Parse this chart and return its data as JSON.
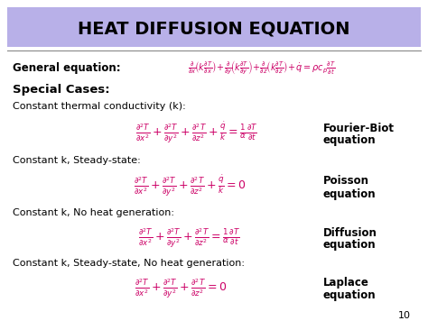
{
  "title": "HEAT DIFFUSION EQUATION",
  "title_bg": "#b8b0e8",
  "bg_color": "#ffffff",
  "math_color": "#cc0066",
  "text_color": "#000000",
  "general_label": "General equation:",
  "special_cases_label": "Special Cases:",
  "case1_desc": "Constant thermal conductivity (k):",
  "case1_name_line1": "Fourier-Biot",
  "case1_name_line2": "equation",
  "case2_desc": "Constant k, Steady-state:",
  "case2_name_line1": "Poisson",
  "case2_name_line2": "equation",
  "case3_desc": "Constant k, No heat generation:",
  "case3_name_line1": "Diffusion",
  "case3_name_line2": "equation",
  "case4_desc": "Constant k, Steady-state, No heat generation:",
  "case4_name_line1": "Laplace",
  "case4_name_line2": "equation",
  "page_num": "10",
  "eq_fontsize": 9,
  "desc_fontsize": 8,
  "name_fontsize": 8.5
}
